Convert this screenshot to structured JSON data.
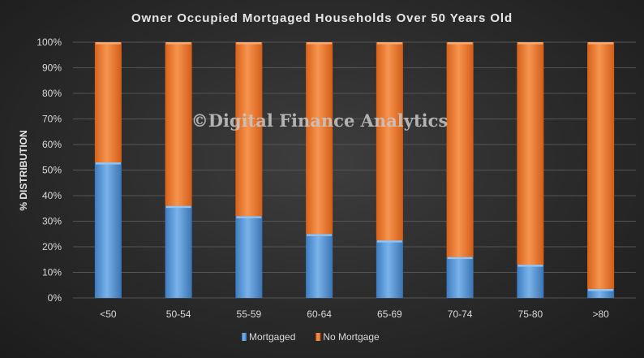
{
  "chart_data": {
    "type": "bar",
    "stacked": true,
    "title": "Owner Occupied Mortgaged Households Over 50 Years Old",
    "ylabel": "% DISTRIBUTION",
    "xlabel": "",
    "categories": [
      "<50",
      "50-54",
      "55-59",
      "60-64",
      "65-69",
      "70-74",
      "75-80",
      ">80"
    ],
    "series": [
      {
        "name": "Mortgaged",
        "values": [
          53,
          36,
          32,
          25,
          22.5,
          16,
          13,
          3.5
        ],
        "color": "#5b9bd5"
      },
      {
        "name": "No Mortgage",
        "values": [
          47,
          64,
          68,
          75,
          77.5,
          84,
          87,
          96.5
        ],
        "color": "#ed7d31"
      }
    ],
    "ylim": [
      0,
      100
    ],
    "yticks": [
      "0%",
      "10%",
      "20%",
      "30%",
      "40%",
      "50%",
      "60%",
      "70%",
      "80%",
      "90%",
      "100%"
    ],
    "grid": true,
    "legend_position": "bottom",
    "watermark": "©Digital Finance Analytics"
  }
}
